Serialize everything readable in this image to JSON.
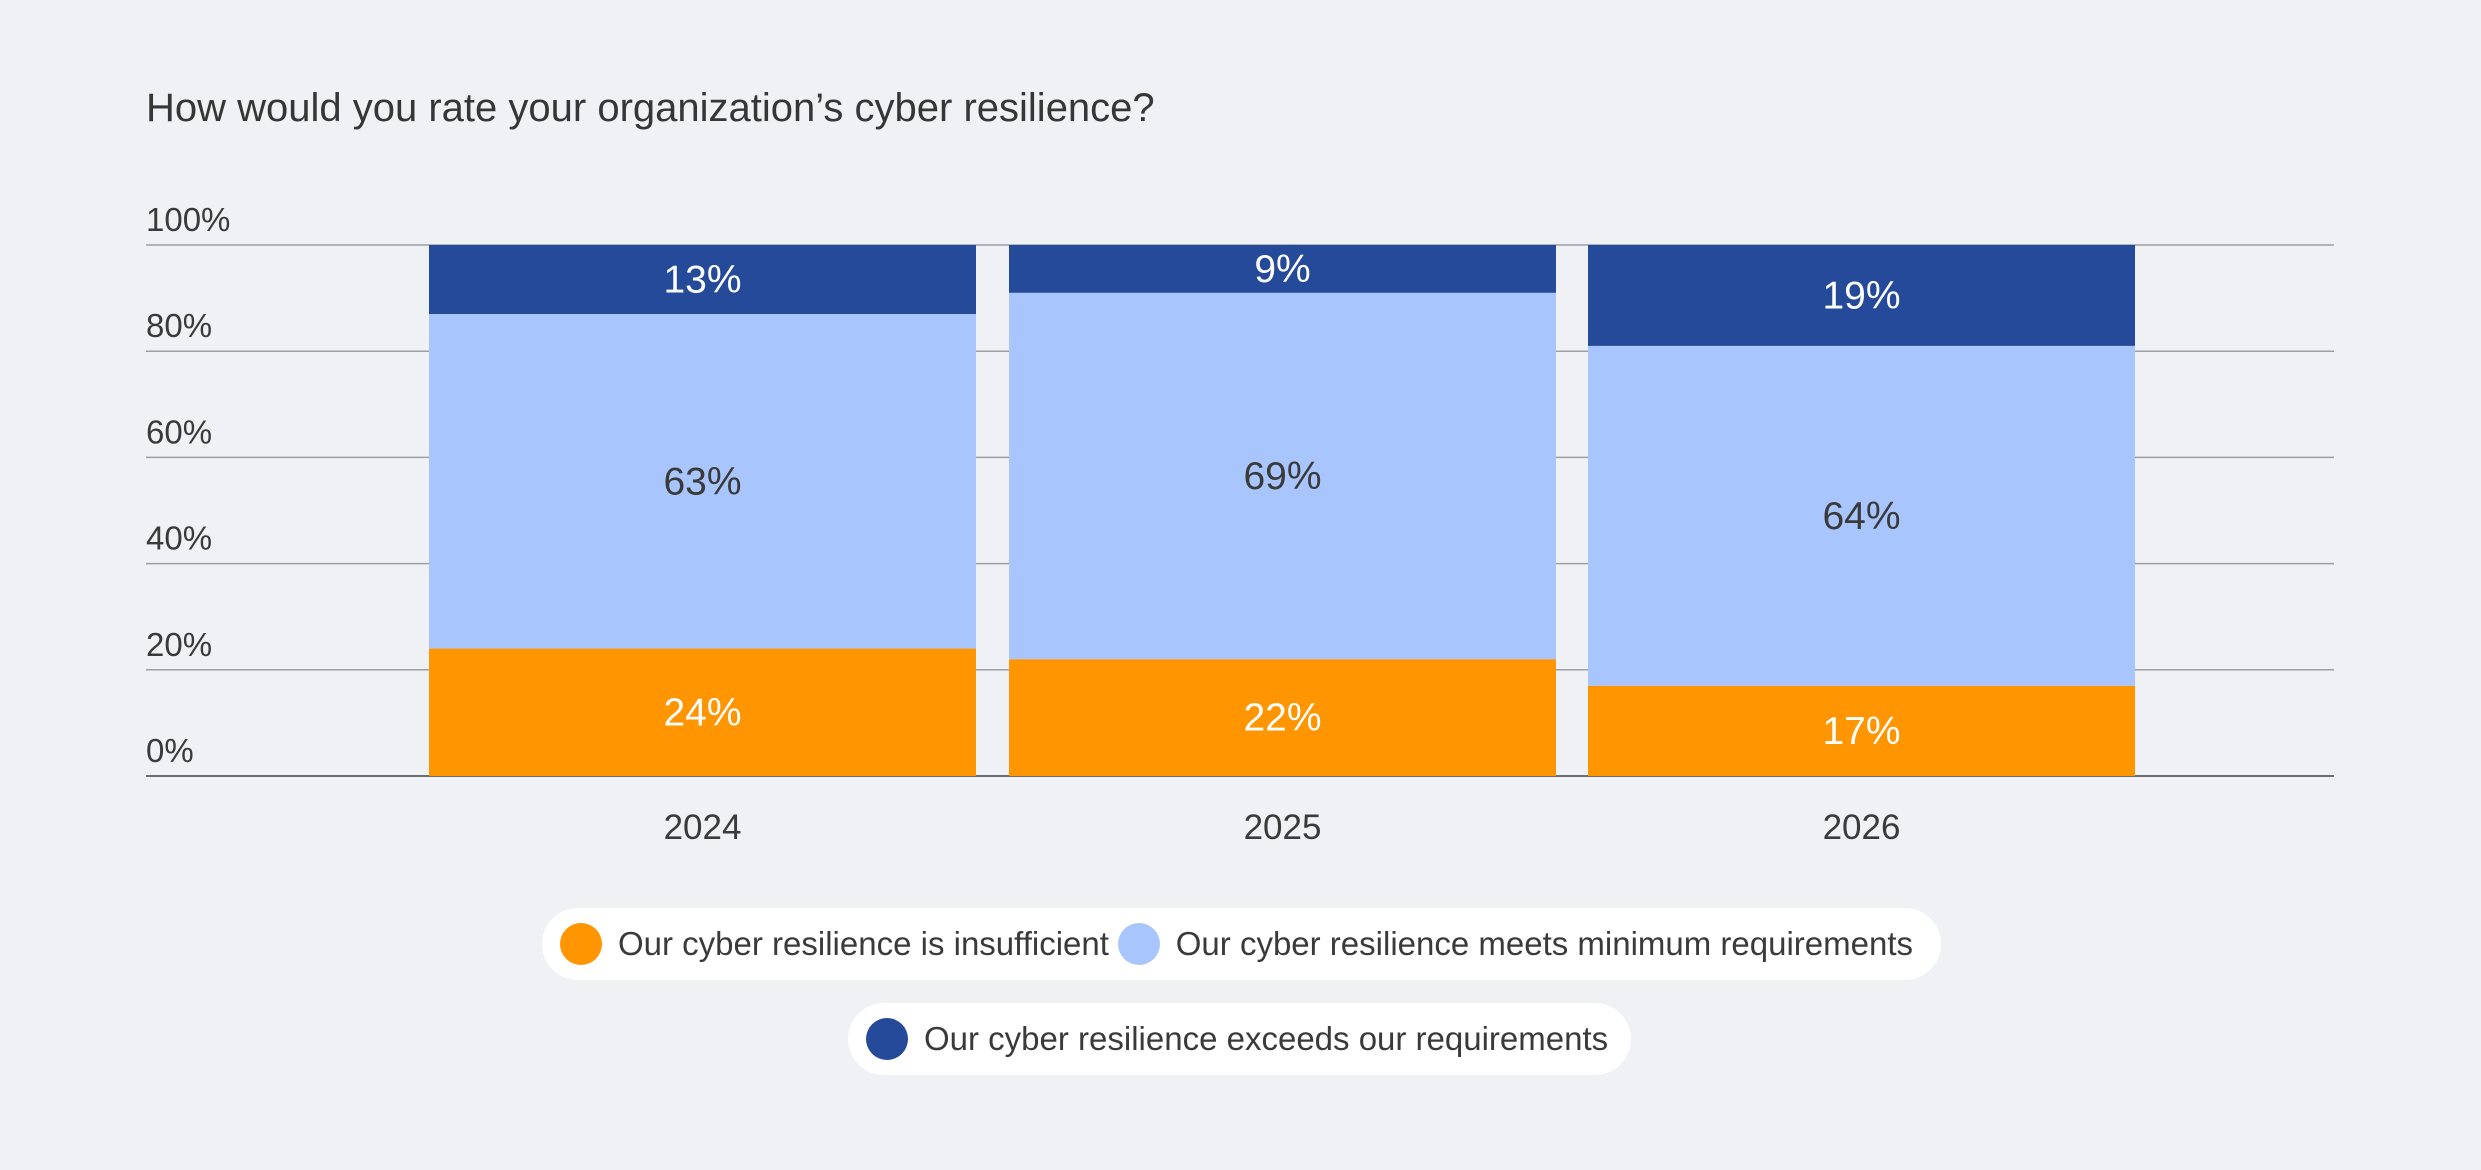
{
  "chart_data": {
    "type": "bar",
    "stacked": true,
    "title": "How would you rate your organization’s cyber resilience?",
    "xlabel": "",
    "ylabel": "",
    "ylim": [
      0,
      100
    ],
    "y_ticks": [
      "0%",
      "20%",
      "40%",
      "60%",
      "80%",
      "100%"
    ],
    "y_tick_values": [
      0,
      20,
      40,
      60,
      80,
      100
    ],
    "grid": true,
    "legend_position": "bottom",
    "categories": [
      "2024",
      "2025",
      "2026"
    ],
    "series": [
      {
        "name": "Our cyber resilience is insufficient",
        "values": [
          24,
          22,
          17
        ],
        "labels": [
          "24%",
          "22%",
          "17%"
        ],
        "color": "#ff9500",
        "label_color": "#ffffff"
      },
      {
        "name": "Our cyber resilience meets minimum requirements",
        "values": [
          63,
          69,
          64
        ],
        "labels": [
          "63%",
          "69%",
          "64%"
        ],
        "color": "#a8c6fd",
        "label_color": "#3a3a3a"
      },
      {
        "name": "Our cyber resilience exceeds our requirements",
        "values": [
          13,
          9,
          19
        ],
        "labels": [
          "13%",
          "9%",
          "19%"
        ],
        "color": "#244a99",
        "label_color": "#ffffff"
      }
    ]
  },
  "colors": {
    "background": "#eff1f4",
    "gridline": "#9aa0a6",
    "axis_text": "#3a3a3a",
    "title_text": "#363636"
  }
}
